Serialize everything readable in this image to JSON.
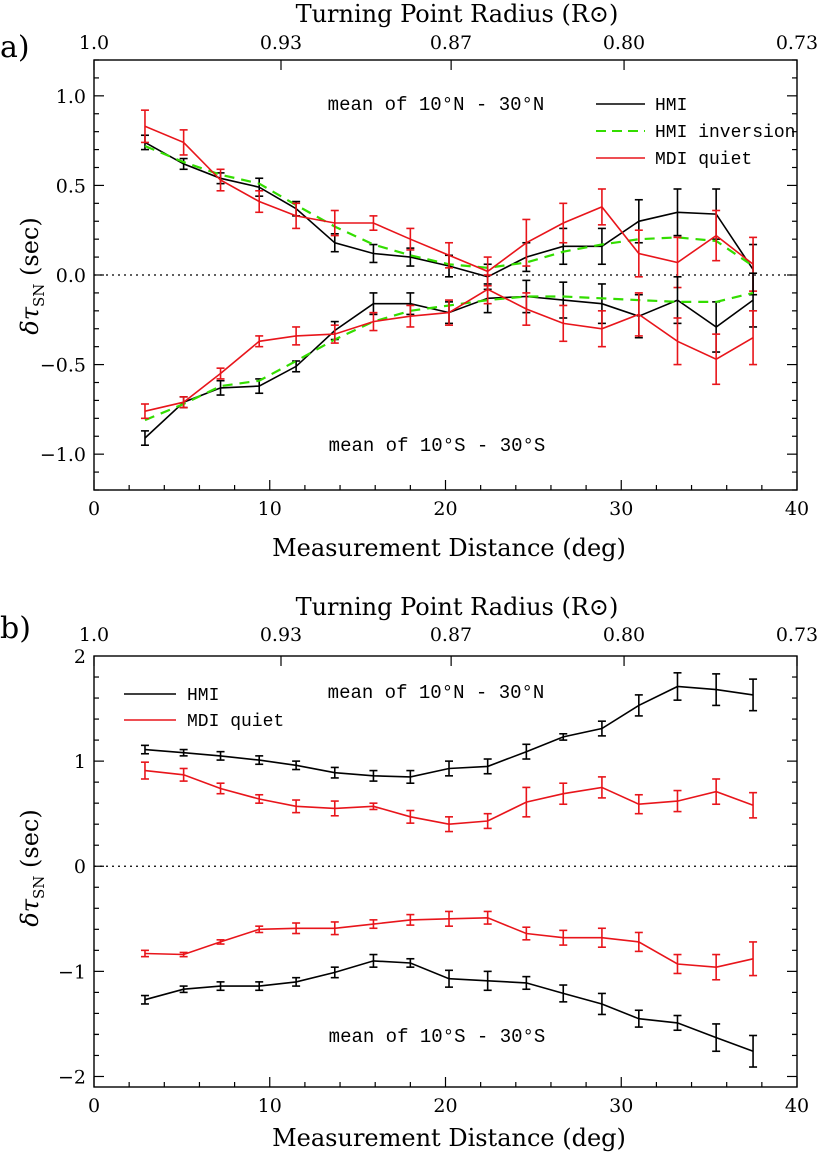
{
  "chart_data": [
    {
      "type": "line",
      "panel_label": "a)",
      "xlabel": "Measurement Distance (deg)",
      "ylabel": "δτ_SN (sec)",
      "top_axis_label": "Turning Point Radius (R⊙)",
      "top_ticks": [
        "1.0",
        "0.93",
        "0.87",
        "0.80",
        "0.73"
      ],
      "xlim": [
        0,
        40
      ],
      "ylim": [
        -1.2,
        1.2
      ],
      "xticks": [
        0,
        10,
        20,
        30,
        40
      ],
      "yticks": [
        -1.0,
        -0.5,
        0.0,
        0.5,
        1.0
      ],
      "ytick_labels": [
        "−1.0",
        "−0.5",
        "0.0",
        "0.5",
        "1.0"
      ],
      "zero_line": "dotted",
      "legend_position": "top-right",
      "annotations": [
        "mean of 10°N - 30°N",
        "mean of 10°S - 30°S"
      ],
      "x": [
        2.9,
        5.1,
        7.2,
        9.4,
        11.5,
        13.7,
        15.9,
        18.0,
        20.2,
        22.4,
        24.6,
        26.7,
        28.9,
        31.0,
        33.2,
        35.4,
        37.5
      ],
      "series": [
        {
          "name": "HMI",
          "color": "#000000",
          "group": "north",
          "style": "solid",
          "values": [
            0.74,
            0.62,
            0.54,
            0.49,
            0.37,
            0.18,
            0.12,
            0.1,
            0.05,
            -0.01,
            0.1,
            0.16,
            0.16,
            0.3,
            0.35,
            0.34,
            0.03
          ],
          "errors": [
            0.04,
            0.03,
            0.03,
            0.05,
            0.04,
            0.05,
            0.05,
            0.05,
            0.06,
            0.07,
            0.08,
            0.1,
            0.1,
            0.12,
            0.13,
            0.14,
            0.14
          ]
        },
        {
          "name": "HMI inversion",
          "color": "#33dd00",
          "group": "north",
          "style": "dashed",
          "values": [
            0.72,
            0.63,
            0.56,
            0.51,
            0.39,
            0.27,
            0.17,
            0.11,
            0.06,
            0.04,
            0.07,
            0.13,
            0.17,
            0.2,
            0.21,
            0.19,
            0.05
          ],
          "errors": []
        },
        {
          "name": "MDI quiet",
          "color": "#e8151b",
          "group": "north",
          "style": "solid",
          "values": [
            0.83,
            0.74,
            0.53,
            0.41,
            0.33,
            0.29,
            0.29,
            0.2,
            0.11,
            0.02,
            0.18,
            0.29,
            0.38,
            0.12,
            0.07,
            0.22,
            0.06
          ],
          "errors": [
            0.09,
            0.07,
            0.06,
            0.06,
            0.07,
            0.07,
            0.04,
            0.06,
            0.07,
            0.08,
            0.13,
            0.11,
            0.1,
            0.13,
            0.14,
            0.14,
            0.15
          ]
        },
        {
          "name": "HMI",
          "color": "#000000",
          "group": "south",
          "style": "solid",
          "values": [
            -0.91,
            -0.71,
            -0.63,
            -0.62,
            -0.51,
            -0.31,
            -0.16,
            -0.16,
            -0.21,
            -0.13,
            -0.12,
            -0.14,
            -0.16,
            -0.23,
            -0.14,
            -0.29,
            -0.14
          ],
          "errors": [
            0.04,
            0.03,
            0.04,
            0.04,
            0.03,
            0.05,
            0.06,
            0.06,
            0.06,
            0.08,
            0.09,
            0.1,
            0.11,
            0.12,
            0.13,
            0.14,
            0.15
          ]
        },
        {
          "name": "HMI inversion",
          "color": "#33dd00",
          "group": "south",
          "style": "dashed",
          "values": [
            -0.81,
            -0.72,
            -0.62,
            -0.59,
            -0.48,
            -0.36,
            -0.26,
            -0.2,
            -0.17,
            -0.14,
            -0.12,
            -0.12,
            -0.13,
            -0.14,
            -0.15,
            -0.15,
            -0.1
          ],
          "errors": []
        },
        {
          "name": "MDI quiet",
          "color": "#e8151b",
          "group": "south",
          "style": "solid",
          "values": [
            -0.76,
            -0.71,
            -0.55,
            -0.37,
            -0.34,
            -0.33,
            -0.26,
            -0.23,
            -0.21,
            -0.08,
            -0.19,
            -0.27,
            -0.3,
            -0.22,
            -0.37,
            -0.47,
            -0.35
          ],
          "errors": [
            0.04,
            0.03,
            0.03,
            0.03,
            0.05,
            0.05,
            0.05,
            0.06,
            0.07,
            0.08,
            0.09,
            0.1,
            0.1,
            0.12,
            0.13,
            0.14,
            0.15
          ]
        }
      ]
    },
    {
      "type": "line",
      "panel_label": "b)",
      "xlabel": "Measurement Distance (deg)",
      "ylabel": "δτ_SN (sec)",
      "top_axis_label": "Turning Point Radius (R⊙)",
      "top_ticks": [
        "1.0",
        "0.93",
        "0.87",
        "0.80",
        "0.73"
      ],
      "xlim": [
        0,
        40
      ],
      "ylim": [
        -2.1,
        2.0
      ],
      "xticks": [
        0,
        10,
        20,
        30,
        40
      ],
      "yticks": [
        -2,
        -1,
        0,
        1,
        2
      ],
      "ytick_labels": [
        "−2",
        "−1",
        "0",
        "1",
        "2"
      ],
      "zero_line": "dotted",
      "legend_position": "top-left",
      "annotations": [
        "mean of 10°N - 30°N",
        "mean of 10°S - 30°S"
      ],
      "x": [
        2.9,
        5.1,
        7.2,
        9.4,
        11.5,
        13.7,
        15.9,
        18.0,
        20.2,
        22.4,
        24.6,
        26.7,
        28.9,
        31.0,
        33.2,
        35.4,
        37.5
      ],
      "series": [
        {
          "name": "HMI",
          "color": "#000000",
          "group": "north",
          "style": "solid",
          "values": [
            1.11,
            1.08,
            1.05,
            1.01,
            0.96,
            0.89,
            0.86,
            0.85,
            0.93,
            0.95,
            1.09,
            1.23,
            1.31,
            1.53,
            1.71,
            1.68,
            1.63
          ],
          "errors": [
            0.04,
            0.03,
            0.04,
            0.04,
            0.04,
            0.05,
            0.05,
            0.06,
            0.07,
            0.07,
            0.07,
            0.03,
            0.07,
            0.1,
            0.13,
            0.15,
            0.15
          ]
        },
        {
          "name": "MDI quiet",
          "color": "#e8151b",
          "group": "north",
          "style": "solid",
          "values": [
            0.91,
            0.87,
            0.74,
            0.64,
            0.57,
            0.55,
            0.57,
            0.47,
            0.4,
            0.43,
            0.61,
            0.69,
            0.75,
            0.59,
            0.62,
            0.71,
            0.58
          ],
          "errors": [
            0.08,
            0.06,
            0.05,
            0.04,
            0.06,
            0.07,
            0.03,
            0.06,
            0.07,
            0.07,
            0.14,
            0.1,
            0.1,
            0.09,
            0.1,
            0.12,
            0.12
          ]
        },
        {
          "name": "MDI quiet",
          "color": "#e8151b",
          "group": "south",
          "style": "solid",
          "values": [
            -0.83,
            -0.84,
            -0.72,
            -0.6,
            -0.59,
            -0.59,
            -0.55,
            -0.51,
            -0.5,
            -0.49,
            -0.64,
            -0.68,
            -0.68,
            -0.72,
            -0.93,
            -0.96,
            -0.88
          ],
          "errors": [
            0.03,
            0.02,
            0.02,
            0.03,
            0.05,
            0.06,
            0.04,
            0.05,
            0.07,
            0.06,
            0.06,
            0.07,
            0.09,
            0.09,
            0.09,
            0.12,
            0.16
          ]
        },
        {
          "name": "HMI",
          "color": "#000000",
          "group": "south",
          "style": "solid",
          "values": [
            -1.27,
            -1.17,
            -1.14,
            -1.14,
            -1.1,
            -1.01,
            -0.9,
            -0.92,
            -1.07,
            -1.09,
            -1.11,
            -1.21,
            -1.31,
            -1.45,
            -1.49,
            -1.63,
            -1.76
          ],
          "errors": [
            0.04,
            0.03,
            0.04,
            0.04,
            0.04,
            0.05,
            0.06,
            0.04,
            0.08,
            0.09,
            0.06,
            0.08,
            0.1,
            0.08,
            0.07,
            0.13,
            0.15
          ]
        }
      ]
    }
  ]
}
